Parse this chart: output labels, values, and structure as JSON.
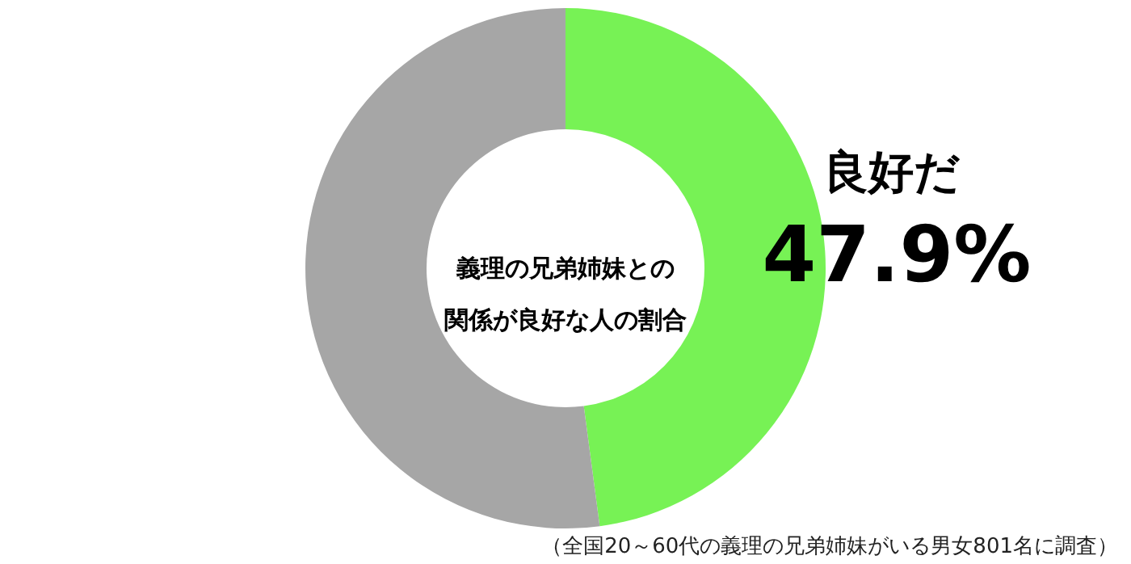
{
  "chart_data": {
    "type": "donut",
    "title": "義理の兄弟姉妹との関係が良好な人の割合",
    "categories": [
      "良好だ",
      null
    ],
    "values": [
      47.9,
      52.1
    ],
    "colors": [
      "#77f255",
      "#a6a6a6"
    ],
    "value_labels": [
      "47.9%",
      null
    ],
    "annotations": [
      "（全国20～60代の義理の兄弟姉妹がいる男女801名に調査）"
    ]
  }
}
